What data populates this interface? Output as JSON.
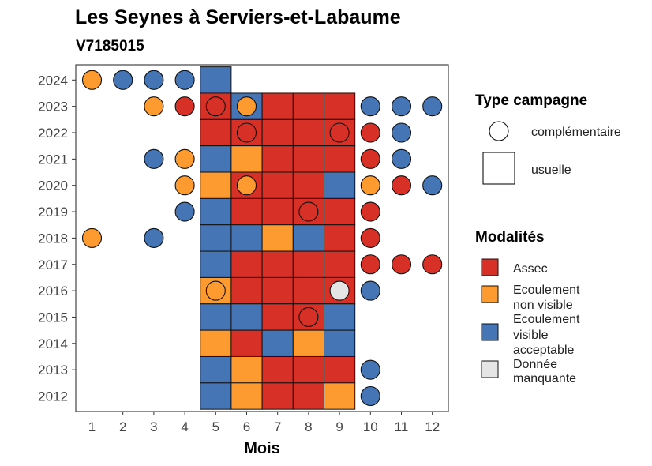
{
  "chart_data": {
    "type": "heatmap",
    "title": "Les Seynes à Serviers-et-Labaume",
    "subtitle": "V7185015",
    "xlabel": "Mois",
    "ylabel": "",
    "x_ticks": [
      "1",
      "2",
      "3",
      "4",
      "5",
      "6",
      "7",
      "8",
      "9",
      "10",
      "11",
      "12"
    ],
    "y_ticks": [
      "2012",
      "2013",
      "2014",
      "2015",
      "2016",
      "2017",
      "2018",
      "2019",
      "2020",
      "2021",
      "2022",
      "2023",
      "2024"
    ],
    "grid": false,
    "legend_position": "right",
    "colors": {
      "assec": "#d73027",
      "ecoulement_non_visible": "#fd9b30",
      "ecoulement_visible_acceptable": "#4575b4",
      "donnee_manquante": "#e5e5e5"
    },
    "legend_shape": {
      "title": "Type campagne",
      "items": [
        {
          "label": "complémentaire",
          "shape": "circle"
        },
        {
          "label": "usuelle",
          "shape": "square"
        }
      ]
    },
    "legend_color": {
      "title": "Modalités",
      "items": [
        {
          "key": "assec",
          "lines": [
            "Assec"
          ]
        },
        {
          "key": "ecoulement_non_visible",
          "lines": [
            "Ecoulement",
            "non visible"
          ]
        },
        {
          "key": "ecoulement_visible_acceptable",
          "lines": [
            "Ecoulement",
            "visible",
            "acceptable"
          ]
        },
        {
          "key": "donnee_manquante",
          "lines": [
            "Donnée",
            "manquante"
          ]
        }
      ]
    },
    "usuelle": [
      {
        "year": 2024,
        "month": 5,
        "value": "ecoulement_visible_acceptable"
      },
      {
        "year": 2023,
        "month": 5,
        "value": "assec"
      },
      {
        "year": 2023,
        "month": 6,
        "value": "ecoulement_visible_acceptable"
      },
      {
        "year": 2023,
        "month": 7,
        "value": "assec"
      },
      {
        "year": 2023,
        "month": 8,
        "value": "assec"
      },
      {
        "year": 2023,
        "month": 9,
        "value": "assec"
      },
      {
        "year": 2022,
        "month": 5,
        "value": "assec"
      },
      {
        "year": 2022,
        "month": 6,
        "value": "assec"
      },
      {
        "year": 2022,
        "month": 7,
        "value": "assec"
      },
      {
        "year": 2022,
        "month": 8,
        "value": "assec"
      },
      {
        "year": 2022,
        "month": 9,
        "value": "assec"
      },
      {
        "year": 2021,
        "month": 5,
        "value": "ecoulement_visible_acceptable"
      },
      {
        "year": 2021,
        "month": 6,
        "value": "ecoulement_non_visible"
      },
      {
        "year": 2021,
        "month": 7,
        "value": "assec"
      },
      {
        "year": 2021,
        "month": 8,
        "value": "assec"
      },
      {
        "year": 2021,
        "month": 9,
        "value": "assec"
      },
      {
        "year": 2020,
        "month": 5,
        "value": "ecoulement_non_visible"
      },
      {
        "year": 2020,
        "month": 6,
        "value": "assec"
      },
      {
        "year": 2020,
        "month": 7,
        "value": "assec"
      },
      {
        "year": 2020,
        "month": 8,
        "value": "assec"
      },
      {
        "year": 2020,
        "month": 9,
        "value": "ecoulement_visible_acceptable"
      },
      {
        "year": 2019,
        "month": 5,
        "value": "ecoulement_visible_acceptable"
      },
      {
        "year": 2019,
        "month": 6,
        "value": "assec"
      },
      {
        "year": 2019,
        "month": 7,
        "value": "assec"
      },
      {
        "year": 2019,
        "month": 8,
        "value": "assec"
      },
      {
        "year": 2019,
        "month": 9,
        "value": "assec"
      },
      {
        "year": 2018,
        "month": 5,
        "value": "ecoulement_visible_acceptable"
      },
      {
        "year": 2018,
        "month": 6,
        "value": "ecoulement_visible_acceptable"
      },
      {
        "year": 2018,
        "month": 7,
        "value": "ecoulement_non_visible"
      },
      {
        "year": 2018,
        "month": 8,
        "value": "ecoulement_visible_acceptable"
      },
      {
        "year": 2018,
        "month": 9,
        "value": "assec"
      },
      {
        "year": 2017,
        "month": 5,
        "value": "ecoulement_visible_acceptable"
      },
      {
        "year": 2017,
        "month": 6,
        "value": "assec"
      },
      {
        "year": 2017,
        "month": 7,
        "value": "assec"
      },
      {
        "year": 2017,
        "month": 8,
        "value": "assec"
      },
      {
        "year": 2017,
        "month": 9,
        "value": "assec"
      },
      {
        "year": 2016,
        "month": 5,
        "value": "ecoulement_non_visible"
      },
      {
        "year": 2016,
        "month": 6,
        "value": "assec"
      },
      {
        "year": 2016,
        "month": 7,
        "value": "assec"
      },
      {
        "year": 2016,
        "month": 8,
        "value": "assec"
      },
      {
        "year": 2016,
        "month": 9,
        "value": "assec"
      },
      {
        "year": 2015,
        "month": 5,
        "value": "ecoulement_visible_acceptable"
      },
      {
        "year": 2015,
        "month": 6,
        "value": "ecoulement_visible_acceptable"
      },
      {
        "year": 2015,
        "month": 7,
        "value": "assec"
      },
      {
        "year": 2015,
        "month": 8,
        "value": "assec"
      },
      {
        "year": 2015,
        "month": 9,
        "value": "ecoulement_visible_acceptable"
      },
      {
        "year": 2014,
        "month": 5,
        "value": "ecoulement_non_visible"
      },
      {
        "year": 2014,
        "month": 6,
        "value": "assec"
      },
      {
        "year": 2014,
        "month": 7,
        "value": "ecoulement_visible_acceptable"
      },
      {
        "year": 2014,
        "month": 8,
        "value": "ecoulement_non_visible"
      },
      {
        "year": 2014,
        "month": 9,
        "value": "ecoulement_visible_acceptable"
      },
      {
        "year": 2013,
        "month": 5,
        "value": "ecoulement_visible_acceptable"
      },
      {
        "year": 2013,
        "month": 6,
        "value": "ecoulement_non_visible"
      },
      {
        "year": 2013,
        "month": 7,
        "value": "assec"
      },
      {
        "year": 2013,
        "month": 8,
        "value": "assec"
      },
      {
        "year": 2013,
        "month": 9,
        "value": "assec"
      },
      {
        "year": 2012,
        "month": 5,
        "value": "ecoulement_visible_acceptable"
      },
      {
        "year": 2012,
        "month": 6,
        "value": "ecoulement_non_visible"
      },
      {
        "year": 2012,
        "month": 7,
        "value": "assec"
      },
      {
        "year": 2012,
        "month": 8,
        "value": "assec"
      },
      {
        "year": 2012,
        "month": 9,
        "value": "ecoulement_non_visible"
      }
    ],
    "complementaire": [
      {
        "year": 2024,
        "month": 1,
        "value": "ecoulement_non_visible"
      },
      {
        "year": 2024,
        "month": 2,
        "value": "ecoulement_visible_acceptable"
      },
      {
        "year": 2024,
        "month": 3,
        "value": "ecoulement_visible_acceptable"
      },
      {
        "year": 2024,
        "month": 4,
        "value": "ecoulement_visible_acceptable"
      },
      {
        "year": 2023,
        "month": 3,
        "value": "ecoulement_non_visible"
      },
      {
        "year": 2023,
        "month": 4,
        "value": "assec"
      },
      {
        "year": 2023,
        "month": 5,
        "value": "assec"
      },
      {
        "year": 2023,
        "month": 6,
        "value": "ecoulement_non_visible"
      },
      {
        "year": 2023,
        "month": 10,
        "value": "ecoulement_visible_acceptable"
      },
      {
        "year": 2023,
        "month": 11,
        "value": "ecoulement_visible_acceptable"
      },
      {
        "year": 2023,
        "month": 12,
        "value": "ecoulement_visible_acceptable"
      },
      {
        "year": 2022,
        "month": 6,
        "value": "assec"
      },
      {
        "year": 2022,
        "month": 9,
        "value": "assec"
      },
      {
        "year": 2022,
        "month": 10,
        "value": "assec"
      },
      {
        "year": 2022,
        "month": 11,
        "value": "ecoulement_visible_acceptable"
      },
      {
        "year": 2021,
        "month": 3,
        "value": "ecoulement_visible_acceptable"
      },
      {
        "year": 2021,
        "month": 4,
        "value": "ecoulement_non_visible"
      },
      {
        "year": 2021,
        "month": 10,
        "value": "assec"
      },
      {
        "year": 2021,
        "month": 11,
        "value": "ecoulement_visible_acceptable"
      },
      {
        "year": 2020,
        "month": 4,
        "value": "ecoulement_non_visible"
      },
      {
        "year": 2020,
        "month": 6,
        "value": "ecoulement_non_visible"
      },
      {
        "year": 2020,
        "month": 10,
        "value": "ecoulement_non_visible"
      },
      {
        "year": 2020,
        "month": 11,
        "value": "assec"
      },
      {
        "year": 2020,
        "month": 12,
        "value": "ecoulement_visible_acceptable"
      },
      {
        "year": 2019,
        "month": 4,
        "value": "ecoulement_visible_acceptable"
      },
      {
        "year": 2019,
        "month": 8,
        "value": "assec"
      },
      {
        "year": 2019,
        "month": 10,
        "value": "assec"
      },
      {
        "year": 2018,
        "month": 1,
        "value": "ecoulement_non_visible"
      },
      {
        "year": 2018,
        "month": 3,
        "value": "ecoulement_visible_acceptable"
      },
      {
        "year": 2018,
        "month": 10,
        "value": "assec"
      },
      {
        "year": 2017,
        "month": 10,
        "value": "assec"
      },
      {
        "year": 2017,
        "month": 11,
        "value": "assec"
      },
      {
        "year": 2017,
        "month": 12,
        "value": "assec"
      },
      {
        "year": 2016,
        "month": 5,
        "value": "ecoulement_non_visible"
      },
      {
        "year": 2016,
        "month": 9,
        "value": "donnee_manquante"
      },
      {
        "year": 2016,
        "month": 10,
        "value": "ecoulement_visible_acceptable"
      },
      {
        "year": 2015,
        "month": 8,
        "value": "assec"
      },
      {
        "year": 2013,
        "month": 10,
        "value": "ecoulement_visible_acceptable"
      },
      {
        "year": 2012,
        "month": 10,
        "value": "ecoulement_visible_acceptable"
      }
    ]
  }
}
